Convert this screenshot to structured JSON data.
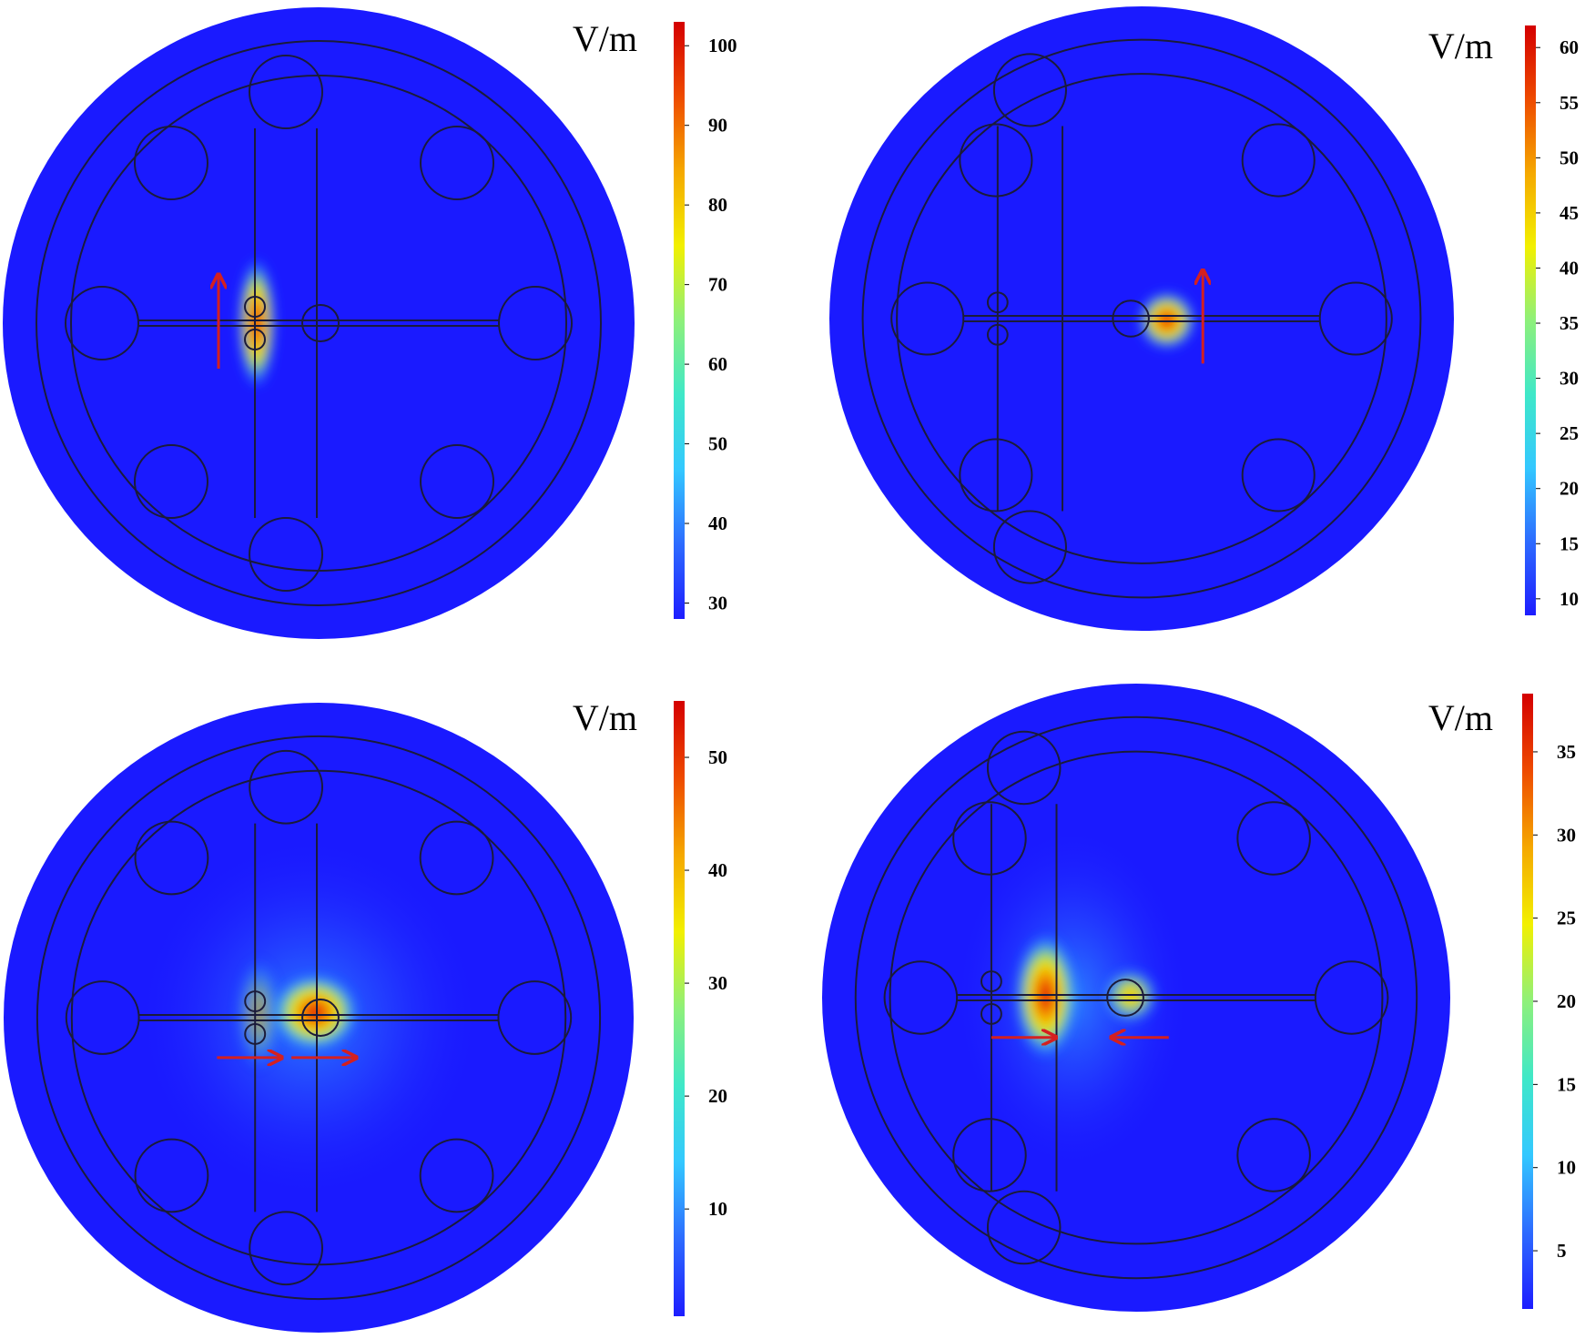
{
  "figure": {
    "panels": [
      {
        "id": "top-left",
        "unit": "V/m",
        "colorbar": {
          "min": 28,
          "max": 103,
          "ticks": [
            30,
            40,
            50,
            60,
            70,
            80,
            90,
            100
          ]
        },
        "hotspot": "between-discs-left",
        "arrows": [
          {
            "direction": "up"
          }
        ]
      },
      {
        "id": "top-right",
        "unit": "V/m",
        "colorbar": {
          "min": 8.5,
          "max": 62,
          "ticks": [
            10,
            15,
            20,
            25,
            30,
            35,
            40,
            45,
            50,
            55,
            60
          ]
        },
        "hotspot": "center-disc",
        "arrows": [
          {
            "direction": "up"
          }
        ]
      },
      {
        "id": "bottom-left",
        "unit": "V/m",
        "colorbar": {
          "min": 0.5,
          "max": 55,
          "ticks": [
            10,
            20,
            30,
            40,
            50
          ]
        },
        "hotspot": "center-disc-wide",
        "arrows": [
          {
            "direction": "right"
          },
          {
            "direction": "right"
          }
        ]
      },
      {
        "id": "bottom-right",
        "unit": "V/m",
        "colorbar": {
          "min": 1.5,
          "max": 38.5,
          "ticks": [
            5,
            10,
            15,
            20,
            25,
            30,
            35
          ]
        },
        "hotspot": "split",
        "arrows": [
          {
            "direction": "right"
          },
          {
            "direction": "left"
          }
        ]
      }
    ],
    "colors": {
      "field_low": "#1a1aff",
      "arrow": "#d42020",
      "outline": "#1b1b3a"
    },
    "colormap": [
      "#1d1dff",
      "#2d6bff",
      "#33c8ff",
      "#3fe8c8",
      "#8ef07a",
      "#f2f000",
      "#f5a800",
      "#ee4a00",
      "#d40000"
    ]
  }
}
